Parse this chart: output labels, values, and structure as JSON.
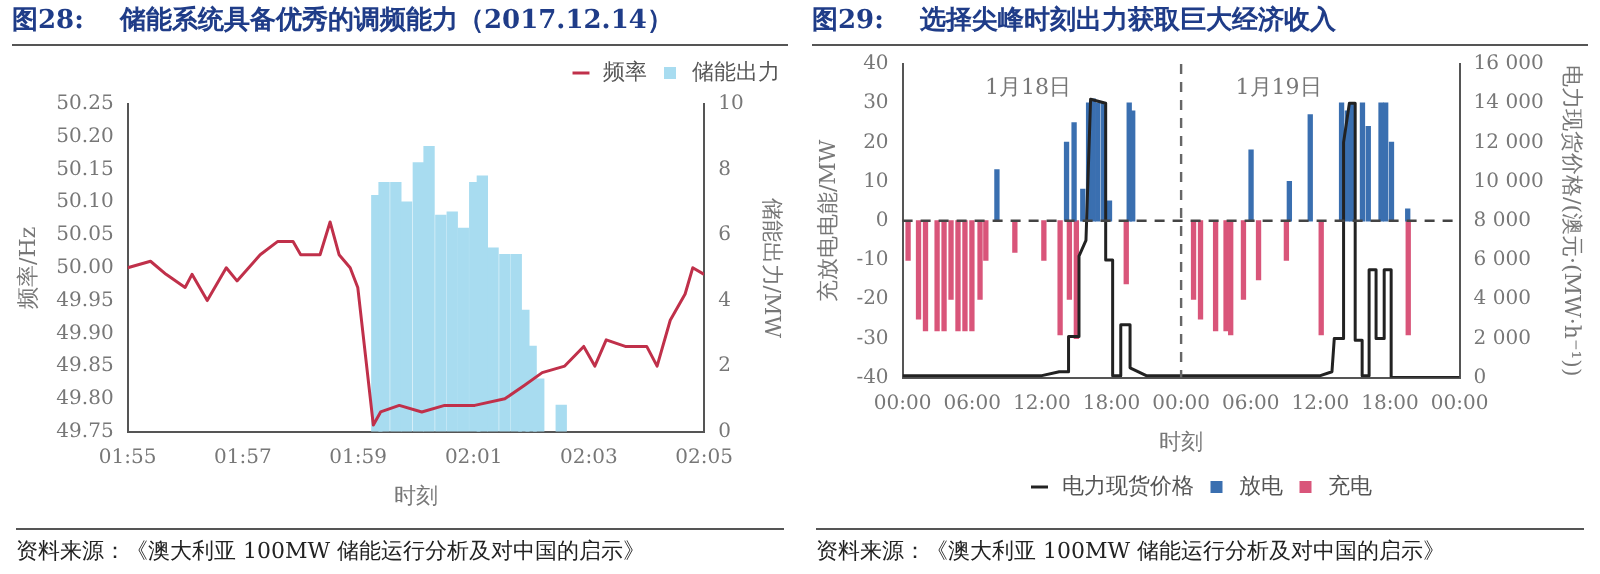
{
  "chart_data": [
    {
      "type": "line",
      "title": "图28:    储能系统具备优秀的调频能力（2017.12.14）",
      "xlabel": "时刻",
      "ylabel": "频率/Hz",
      "y2label": "储能出力/MW",
      "legend": "top right",
      "xlim": [
        1.9167,
        2.0833
      ],
      "xticks": [
        {
          "value": 1.9167,
          "label": "01:55"
        },
        {
          "value": 1.95,
          "label": "01:57"
        },
        {
          "value": 1.9833,
          "label": "01:59"
        },
        {
          "value": 2.0167,
          "label": "02:01"
        },
        {
          "value": 2.05,
          "label": "02:03"
        },
        {
          "value": 2.0833,
          "label": "02:05"
        }
      ],
      "ylim": [
        49.75,
        50.25
      ],
      "yticks": [
        {
          "value": 49.75,
          "label": "49.75"
        },
        {
          "value": 49.8,
          "label": "49.80"
        },
        {
          "value": 49.85,
          "label": "49.85"
        },
        {
          "value": 49.9,
          "label": "49.90"
        },
        {
          "value": 49.95,
          "label": "49.95"
        },
        {
          "value": 50,
          "label": "50.00"
        },
        {
          "value": 50.05,
          "label": "50.05"
        },
        {
          "value": 50.1,
          "label": "50.10"
        },
        {
          "value": 50.15,
          "label": "50.15"
        },
        {
          "value": 50.2,
          "label": "50.20"
        },
        {
          "value": 50.25,
          "label": "50.25"
        }
      ],
      "y2lim": [
        0,
        10
      ],
      "y2ticks": [
        0,
        2,
        4,
        6,
        8,
        10
      ],
      "series": [
        {
          "type": "bar",
          "name": "储能出力",
          "color": "#a8dcf0",
          "axis": "y2",
          "x": [
            1.9887,
            1.9908,
            1.9942,
            1.9973,
            2.0007,
            2.0038,
            2.0072,
            2.0105,
            2.0137,
            2.017,
            2.0192,
            2.0223,
            2.0257,
            2.029,
            2.0312,
            2.0333,
            2.0355,
            2.042
          ],
          "values": [
            7.2,
            7.6,
            7.6,
            7.0,
            8.2,
            8.7,
            6.6,
            6.7,
            6.2,
            7.6,
            7.8,
            5.6,
            5.4,
            5.4,
            3.7,
            2.6,
            1.6,
            0.8
          ]
        },
        {
          "name": "频率",
          "color": "#c0304a",
          "x": [
            1.9167,
            1.9233,
            1.9278,
            1.9333,
            1.9353,
            1.9397,
            1.9452,
            1.9483,
            1.955,
            1.96,
            1.9645,
            1.9667,
            1.9723,
            1.9752,
            1.9778,
            1.981,
            1.9832,
            1.9877,
            1.9898,
            1.9952,
            2.0017,
            2.0083,
            2.017,
            2.0257,
            2.0312,
            2.0365,
            2.043,
            2.0485,
            2.0517,
            2.055,
            2.0605,
            2.0667,
            2.0697,
            2.0735,
            2.0778,
            2.08,
            2.0833
          ],
          "values": [
            50.0,
            50.01,
            49.99,
            49.97,
            49.99,
            49.95,
            50.0,
            49.98,
            50.02,
            50.04,
            50.04,
            50.02,
            50.02,
            50.07,
            50.02,
            50.0,
            49.97,
            49.76,
            49.78,
            49.79,
            49.78,
            49.79,
            49.79,
            49.8,
            49.82,
            49.84,
            49.85,
            49.88,
            49.85,
            49.89,
            49.88,
            49.88,
            49.85,
            49.92,
            49.96,
            50.0,
            49.99
          ]
        }
      ],
      "annotations": [
        "资料来源：《澳大利亚 100MW 储能运行分析及对中国的启示》"
      ]
    },
    {
      "type": "bar",
      "title": "图29:    选择尖峰时刻出力获取巨大经济收入",
      "xlabel": "时刻",
      "ylabel": "充放电电能/MW",
      "y2label": "电力现货价格/(澳元·(MW·h⁻¹))",
      "legend": "bottom",
      "xlim": [
        "--01-18T00:00",
        "--01-20T00:00"
      ],
      "xticks": [
        {
          "value": "--01-18T00:00",
          "label": "00:00"
        },
        {
          "value": "--01-18T06:00",
          "label": "06:00"
        },
        {
          "value": "--01-18T12:00",
          "label": "12:00"
        },
        {
          "value": "--01-18T18:00",
          "label": "18:00"
        },
        {
          "value": "--01-19T00:00",
          "label": "00:00"
        },
        {
          "value": "--01-19T06:00",
          "label": "06:00"
        },
        {
          "value": "--01-19T12:00",
          "label": "12:00"
        },
        {
          "value": "--01-19T18:00",
          "label": "18:00"
        },
        {
          "value": "--01-20T00:00",
          "label": "00:00"
        }
      ],
      "ylim": [
        -40,
        40
      ],
      "yticks": [
        -40,
        -30,
        -20,
        -10,
        0,
        10,
        20,
        30,
        40
      ],
      "y2lim": [
        0,
        16000
      ],
      "y2ticks": [
        0,
        {
          "value": 2000,
          "label": "2 000"
        },
        {
          "value": 4000,
          "label": "4 000"
        },
        {
          "value": 6000,
          "label": "6 000"
        },
        {
          "value": 8000,
          "label": "8 000"
        },
        {
          "value": 10000,
          "label": "10 000"
        },
        {
          "value": 12000,
          "label": "12 000"
        },
        {
          "value": 14000,
          "label": "14 000"
        },
        {
          "value": 16000,
          "label": "16 000"
        }
      ],
      "ref_lines": [
        {
          "axis": "y",
          "value": 0,
          "line_style": "dashed",
          "color": "#444444"
        },
        {
          "axis": "x",
          "value": "--01-19T00:00",
          "line_style": "dashed",
          "color": "#666666"
        }
      ],
      "series": [
        {
          "name": "放电",
          "color": "#3a6fb0",
          "x": [
            "--01-18T08:18",
            "--01-18T14:18",
            "--01-18T14:57",
            "--01-18T15:42",
            "--01-18T16:12",
            "--01-18T16:36",
            "--01-18T17:00",
            "--01-18T17:30",
            "--01-18T18:00",
            "--01-18T19:42",
            "--01-18T20:00",
            "--01-19T06:12",
            "--01-19T09:30",
            "--01-19T11:18",
            "--01-19T14:00",
            "--01-19T14:30",
            "--01-19T14:54",
            "--01-19T15:48",
            "--01-19T16:18",
            "--01-19T17:24",
            "--01-19T17:48",
            "--01-19T18:18",
            "--01-19T19:42"
          ],
          "values": [
            13,
            20,
            25,
            8,
            30,
            31,
            30,
            30,
            5,
            30,
            28,
            18,
            10,
            27,
            30,
            28,
            30,
            30,
            24,
            30,
            30,
            20,
            3
          ]
        },
        {
          "name": "充电",
          "color": "#d9557a",
          "x": [
            "--01-18T00:18",
            "--01-18T01:12",
            "--01-18T01:48",
            "--01-18T02:48",
            "--01-18T03:24",
            "--01-18T04:00",
            "--01-18T04:36",
            "--01-18T05:12",
            "--01-18T05:48",
            "--01-18T06:30",
            "--01-18T07:00",
            "--01-18T09:30",
            "--01-18T12:00",
            "--01-18T13:24",
            "--01-18T14:12",
            "--01-18T14:48",
            "--01-18T19:06",
            "--01-19T00:54",
            "--01-19T01:30",
            "--01-19T02:48",
            "--01-19T03:42",
            "--01-19T04:06",
            "--01-19T05:12",
            "--01-19T06:30",
            "--01-19T08:54",
            "--01-19T11:54",
            "--01-19T19:24"
          ],
          "values": [
            -10,
            -25,
            -28,
            -28,
            -28,
            -20,
            -28,
            -28,
            -28,
            -20,
            -10,
            -8,
            -10,
            -29,
            -20,
            -30,
            -16,
            -20,
            -25,
            -28,
            -28,
            -29,
            -20,
            -15,
            -10,
            -29,
            -29
          ]
        },
        {
          "type": "line",
          "name": "电力现货价格",
          "color": "#222222",
          "axis": "y2",
          "x": [
            "--01-18T00:00",
            "--01-18T12:00",
            "--01-18T13:30",
            "--01-18T14:18",
            "--01-18T14:18",
            "--01-18T15:12",
            "--01-18T15:12",
            "--01-18T15:48",
            "--01-18T16:12",
            "--01-18T17:30",
            "--01-18T17:30",
            "--01-18T18:06",
            "--01-18T18:06",
            "--01-18T18:48",
            "--01-18T18:48",
            "--01-18T19:36",
            "--01-18T19:36",
            "--01-18T21:00",
            "--01-19T12:00",
            "--01-19T13:00",
            "--01-19T13:12",
            "--01-19T14:00",
            "--01-19T14:00",
            "--01-19T14:30",
            "--01-19T15:00",
            "--01-19T15:00",
            "--01-19T15:36",
            "--01-19T15:36",
            "--01-19T16:12",
            "--01-19T16:12",
            "--01-19T16:48",
            "--01-19T16:48",
            "--01-19T17:30",
            "--01-19T17:30",
            "--01-19T18:06",
            "--01-19T18:06",
            "--01-20T00:00"
          ],
          "values": [
            100,
            100,
            300,
            300,
            2100,
            2100,
            6200,
            7000,
            14200,
            14000,
            6000,
            6000,
            100,
            100,
            2700,
            2700,
            500,
            100,
            100,
            300,
            2000,
            2000,
            12000,
            14000,
            14000,
            1900,
            1900,
            100,
            100,
            5500,
            5500,
            2000,
            2000,
            5500,
            5500,
            0,
            0
          ]
        }
      ],
      "annotations": [
        "1月18日",
        "1月19日",
        "资料来源：《澳大利亚 100MW 储能运行分析及对中国的启示》"
      ]
    }
  ]
}
